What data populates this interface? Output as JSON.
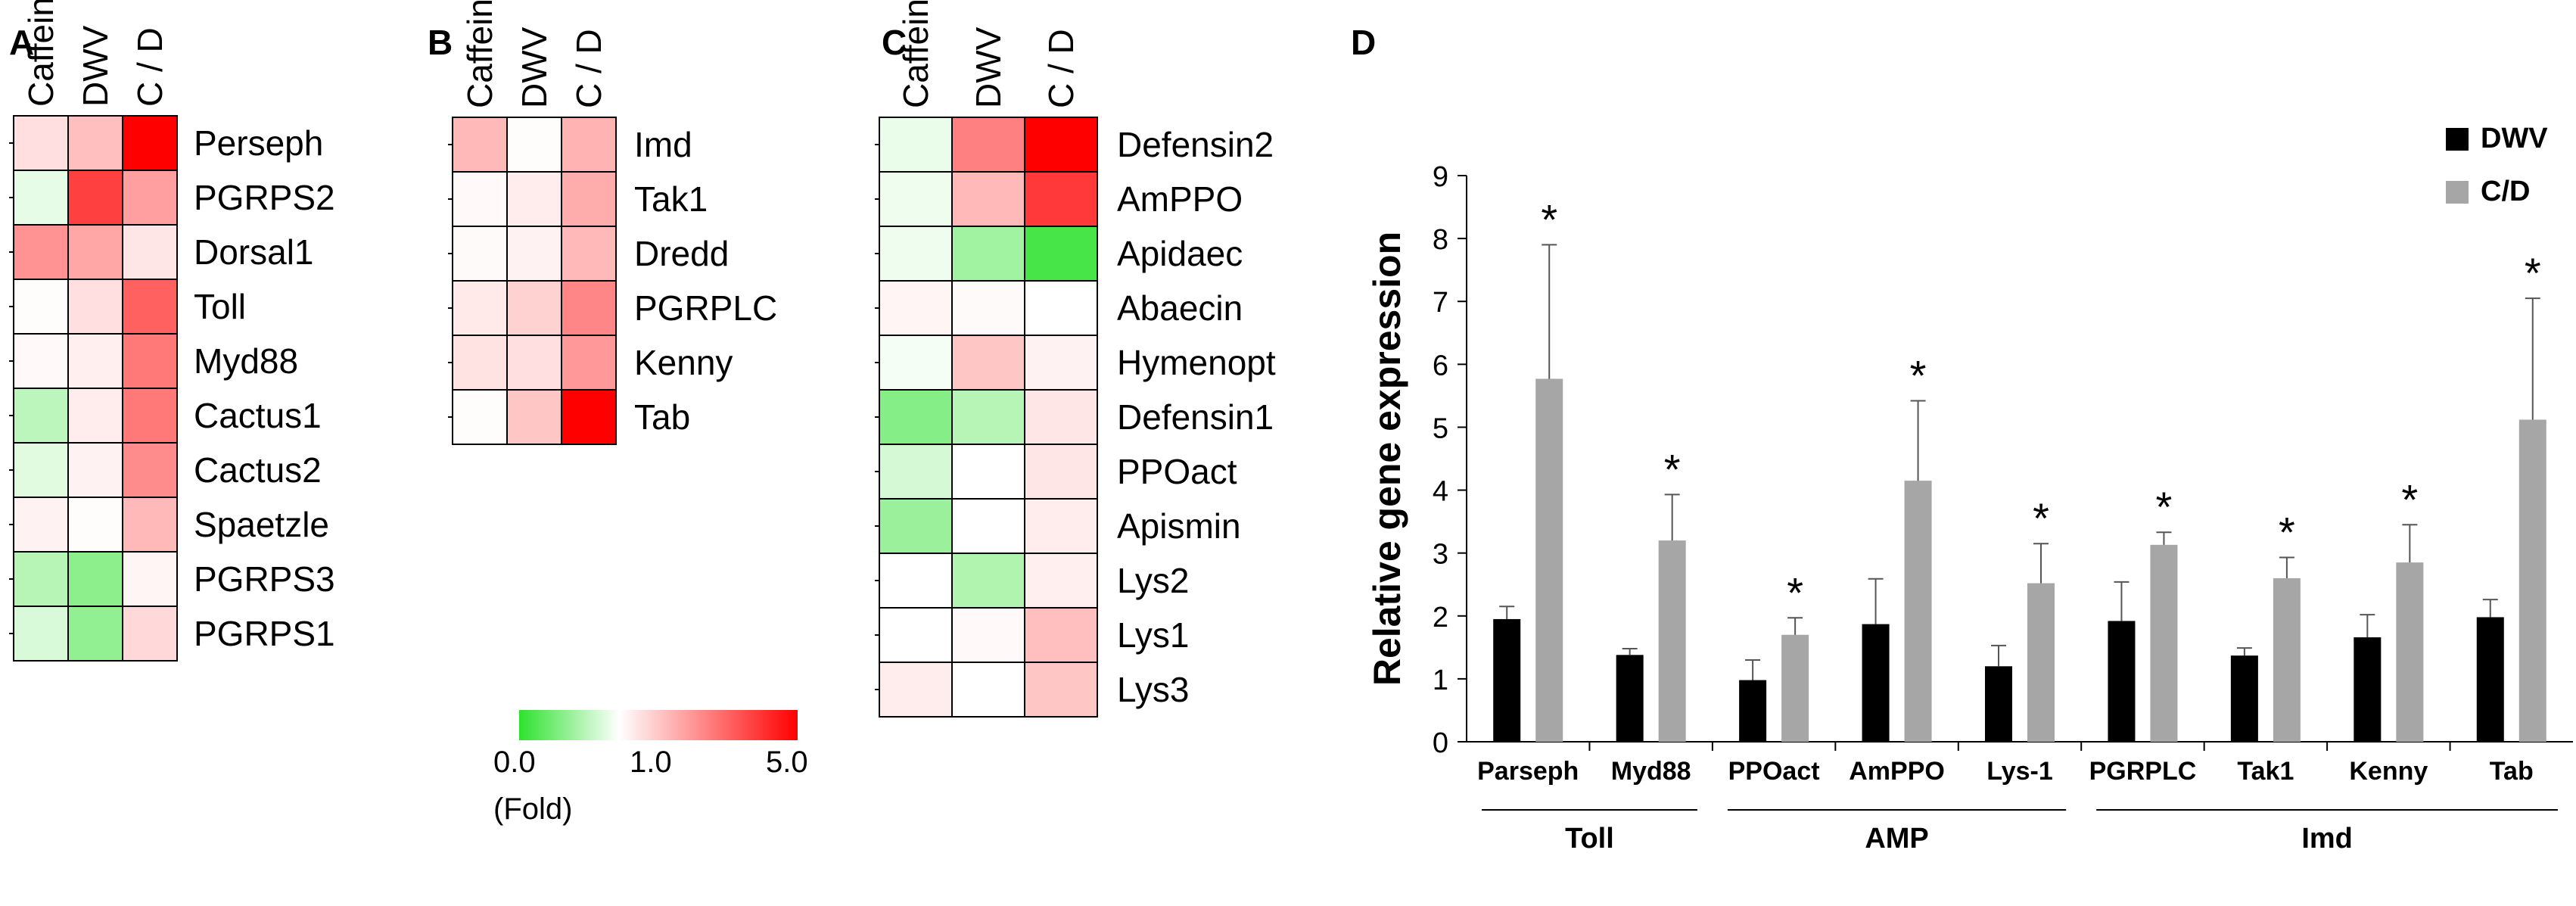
{
  "colors": {
    "low": "#2ee22e",
    "mid": "#ffffff",
    "high": "#ff0000",
    "bar_dwv": "#000000",
    "bar_cd": "#a6a6a6"
  },
  "chart_data": [
    {
      "type": "heatmap",
      "panel": "A",
      "columns": [
        "Caffeine",
        "DWV",
        "C / D"
      ],
      "rows": [
        "Perseph",
        "PGRPS2",
        "Dorsal1",
        "Toll",
        "Myd88",
        "Cactus1",
        "Cactus2",
        "Spaetzle",
        "PGRPS3",
        "PGRPS1"
      ],
      "values": [
        [
          1.5,
          2.0,
          5.0
        ],
        [
          0.88,
          4.0,
          2.5
        ],
        [
          2.7,
          2.4,
          1.4
        ],
        [
          1.05,
          1.5,
          3.5
        ],
        [
          1.1,
          1.25,
          3.1
        ],
        [
          0.68,
          1.3,
          3.1
        ],
        [
          0.85,
          1.2,
          2.8
        ],
        [
          1.2,
          1.05,
          2.1
        ],
        [
          0.65,
          0.45,
          1.15
        ],
        [
          0.82,
          0.48,
          1.6
        ]
      ],
      "scale": {
        "min": 0.0,
        "mid": 1.0,
        "max": 5.0
      }
    },
    {
      "type": "heatmap",
      "panel": "B",
      "columns": [
        "Caffeine",
        "DWV",
        "C / D"
      ],
      "rows": [
        "Imd",
        "Tak1",
        "Dredd",
        "PGRPLC",
        "Kenny",
        "Tab"
      ],
      "values": [
        [
          2.1,
          1.05,
          2.2
        ],
        [
          1.1,
          1.3,
          2.3
        ],
        [
          1.08,
          1.2,
          2.1
        ],
        [
          1.35,
          1.7,
          2.9
        ],
        [
          1.45,
          1.5,
          2.6
        ],
        [
          1.05,
          1.9,
          5.0
        ]
      ],
      "scale": {
        "min": 0.0,
        "mid": 1.0,
        "max": 5.0
      }
    },
    {
      "type": "heatmap",
      "panel": "C",
      "columns": [
        "Caffeine",
        "DWV",
        "C / D"
      ],
      "rows": [
        "Defensin2",
        "AmPPO",
        "Apidaec",
        "Abaecin",
        "Hymenopt",
        "Defensin1",
        "PPOact",
        "Apismin",
        "Lys2",
        "Lys1",
        "Lys3"
      ],
      "values": [
        [
          0.9,
          3.0,
          5.0
        ],
        [
          0.92,
          2.1,
          4.1
        ],
        [
          0.92,
          0.55,
          0.12
        ],
        [
          1.15,
          1.08,
          1.0
        ],
        [
          0.95,
          1.9,
          1.2
        ],
        [
          0.42,
          0.65,
          1.4
        ],
        [
          0.8,
          1.0,
          1.4
        ],
        [
          0.52,
          1.0,
          1.3
        ],
        [
          1.0,
          0.62,
          1.25
        ],
        [
          1.0,
          1.1,
          2.0
        ],
        [
          1.3,
          1.0,
          1.9
        ]
      ],
      "scale": {
        "min": 0.0,
        "mid": 1.0,
        "max": 5.0
      }
    },
    {
      "type": "bar",
      "panel": "D",
      "categories": [
        "Parseph",
        "Myd88",
        "PPOact",
        "AmPPO",
        "Lys-1",
        "PGRPLC",
        "Tak1",
        "Kenny",
        "Tab"
      ],
      "series": [
        {
          "name": "DWV",
          "values": [
            1.95,
            1.38,
            0.98,
            1.87,
            1.2,
            1.92,
            1.37,
            1.66,
            1.98
          ],
          "errors": [
            0.2,
            0.1,
            0.32,
            0.72,
            0.33,
            0.62,
            0.12,
            0.36,
            0.28
          ]
        },
        {
          "name": "C/D",
          "values": [
            5.77,
            3.2,
            1.7,
            4.15,
            2.52,
            3.13,
            2.6,
            2.85,
            5.12
          ],
          "errors": [
            2.13,
            0.73,
            0.27,
            1.27,
            0.63,
            0.2,
            0.33,
            0.6,
            1.93
          ]
        }
      ],
      "significance": [
        "*",
        "*",
        "*",
        "*",
        "*",
        "*",
        "*",
        "*",
        "*"
      ],
      "ylabel": "Relative gene expression",
      "ylim": [
        0,
        9
      ],
      "yticks": [
        "0",
        "1",
        "2",
        "3",
        "4",
        "5",
        "6",
        "7",
        "8",
        "9"
      ],
      "groups": [
        {
          "label": "Toll",
          "categories": [
            "Parseph",
            "Myd88"
          ]
        },
        {
          "label": "AMP",
          "categories": [
            "PPOact",
            "AmPPO",
            "Lys-1"
          ]
        },
        {
          "label": "Imd",
          "categories": [
            "PGRPLC",
            "Tak1",
            "Kenny",
            "Tab"
          ]
        }
      ],
      "legend_position": "top-right"
    }
  ],
  "panels": {
    "a": "A",
    "b": "B",
    "c": "C",
    "d": "D"
  },
  "colorbar": {
    "min_label": "0.0",
    "mid_label": "1.0",
    "max_label": "5.0",
    "caption": "(Fold)"
  }
}
